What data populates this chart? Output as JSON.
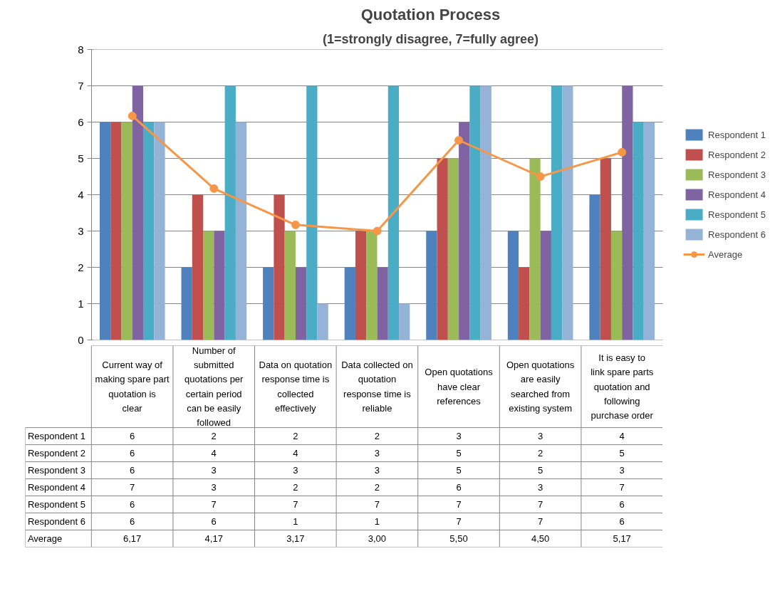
{
  "chart_data": {
    "type": "bar",
    "title": "Quotation Process",
    "subtitle": "(1=strongly disagree, 7=fully agree)",
    "categories": [
      "Current way of making spare part quotation is clear",
      "Number of submitted quotations per certain period can be easily followed",
      "Data on quotation response time is collected effectively",
      "Data collected on quotation response time is reliable",
      "Open quotations have clear references",
      "Open quotations are easily searched from existing system",
      "It is easy to link spare parts quotation and following purchase order"
    ],
    "series": [
      {
        "name": "Respondent 1",
        "color": "#4f81bd",
        "values": [
          6,
          2,
          2,
          2,
          3,
          3,
          4
        ],
        "value_labels": [
          "6",
          "2",
          "2",
          "2",
          "3",
          "3",
          "4"
        ]
      },
      {
        "name": "Respondent 2",
        "color": "#c0504d",
        "values": [
          6,
          4,
          4,
          3,
          5,
          2,
          5
        ],
        "value_labels": [
          "6",
          "4",
          "4",
          "3",
          "5",
          "2",
          "5"
        ]
      },
      {
        "name": "Respondent 3",
        "color": "#9bbb59",
        "values": [
          6,
          3,
          3,
          3,
          5,
          5,
          3
        ],
        "value_labels": [
          "6",
          "3",
          "3",
          "3",
          "5",
          "5",
          "3"
        ]
      },
      {
        "name": "Respondent 4",
        "color": "#8064a2",
        "values": [
          7,
          3,
          2,
          2,
          6,
          3,
          7
        ],
        "value_labels": [
          "7",
          "3",
          "2",
          "2",
          "6",
          "3",
          "7"
        ]
      },
      {
        "name": "Respondent 5",
        "color": "#4bacc6",
        "values": [
          6,
          7,
          7,
          7,
          7,
          7,
          6
        ],
        "value_labels": [
          "6",
          "7",
          "7",
          "7",
          "7",
          "7",
          "6"
        ]
      },
      {
        "name": "Respondent 6",
        "color": "#95b3d7",
        "values": [
          6,
          6,
          1,
          1,
          7,
          7,
          6
        ],
        "value_labels": [
          "6",
          "6",
          "1",
          "1",
          "7",
          "7",
          "6"
        ]
      },
      {
        "name": "Average",
        "type": "line",
        "color": "#f79646",
        "marker": "circle",
        "values": [
          6.17,
          4.17,
          3.17,
          3.0,
          5.5,
          4.5,
          5.17
        ],
        "value_labels": [
          "6,17",
          "4,17",
          "3,17",
          "3,00",
          "5,50",
          "4,50",
          "5,17"
        ]
      }
    ],
    "ylim": [
      0,
      8
    ],
    "yticks": [
      0,
      1,
      2,
      3,
      4,
      5,
      6,
      7,
      8
    ],
    "grid": "y",
    "legend": "right",
    "tick_labels": "y"
  }
}
